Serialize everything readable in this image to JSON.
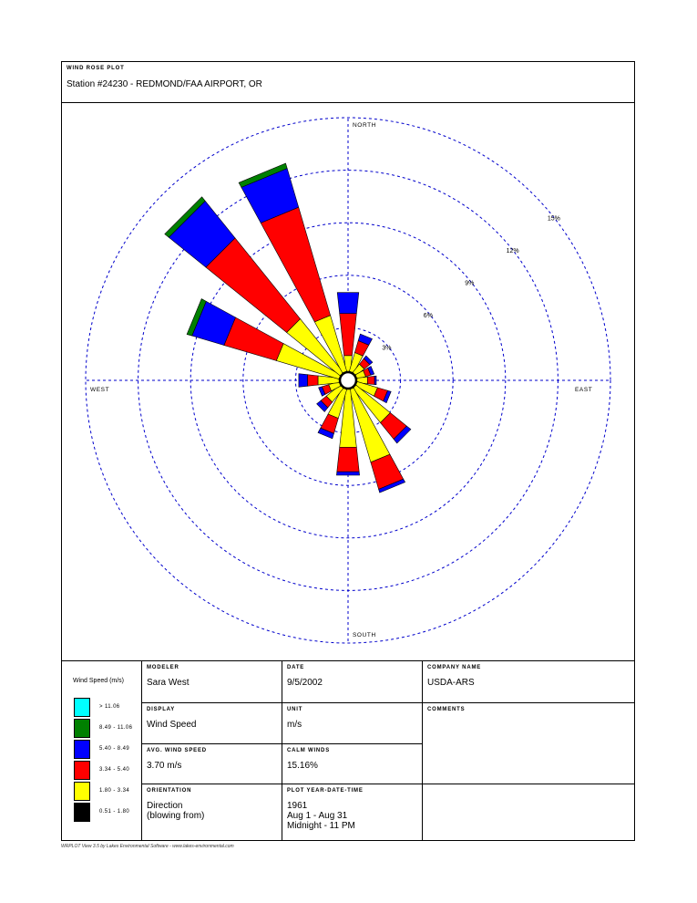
{
  "header": {
    "plot_label": "WIND ROSE PLOT",
    "station": "Station #24230 - REDMOND/FAA AIRPORT, OR"
  },
  "chart_data": {
    "type": "polar-stacked-bar",
    "rings": [
      3,
      6,
      9,
      12,
      15
    ],
    "ring_labels": [
      "3%",
      "6%",
      "9%",
      "12%",
      "15%"
    ],
    "directions": {
      "north": "NORTH",
      "south": "SOUTH",
      "east": "EAST",
      "west": "WEST"
    },
    "bins": [
      {
        "label": "> 11.06",
        "color": "#00ffff"
      },
      {
        "label": "8.49 - 11.06",
        "color": "#008000"
      },
      {
        "label": "5.40 - 8.49",
        "color": "#0000ff"
      },
      {
        "label": "3.34 - 5.40",
        "color": "#ff0000"
      },
      {
        "label": "1.80 - 3.34",
        "color": "#ffff00"
      },
      {
        "label": "0.51 - 1.80",
        "color": "#000000"
      }
    ],
    "series_order": [
      "0.51 - 1.80",
      "1.80 - 3.34",
      "3.34 - 5.40",
      "5.40 - 8.49",
      "8.49 - 11.06",
      "> 11.06"
    ],
    "sectors": [
      {
        "dir": 0,
        "values": [
          0.1,
          0.9,
          2.4,
          1.2,
          0,
          0
        ]
      },
      {
        "dir": 22.5,
        "values": [
          0.1,
          1.1,
          0.7,
          0.4,
          0,
          0
        ]
      },
      {
        "dir": 45,
        "values": [
          0.1,
          0.6,
          0.4,
          0.2,
          0,
          0
        ]
      },
      {
        "dir": 67.5,
        "values": [
          0.1,
          0.5,
          0.3,
          0.2,
          0,
          0
        ]
      },
      {
        "dir": 90,
        "values": [
          0.1,
          0.6,
          0.4,
          0.1,
          0,
          0
        ]
      },
      {
        "dir": 112.5,
        "values": [
          0.1,
          1.2,
          0.6,
          0.2,
          0,
          0
        ]
      },
      {
        "dir": 135,
        "values": [
          0.1,
          2.5,
          1.2,
          0.3,
          0,
          0
        ]
      },
      {
        "dir": 157.5,
        "values": [
          0.1,
          4.3,
          1.6,
          0.2,
          0,
          0
        ]
      },
      {
        "dir": 180,
        "values": [
          0.1,
          3.3,
          1.4,
          0.2,
          0,
          0
        ]
      },
      {
        "dir": 202.5,
        "values": [
          0.1,
          1.7,
          0.9,
          0.3,
          0,
          0
        ]
      },
      {
        "dir": 225,
        "values": [
          0.1,
          1.0,
          0.4,
          0.3,
          0,
          0
        ]
      },
      {
        "dir": 247.5,
        "values": [
          0.1,
          0.6,
          0.4,
          0.2,
          0,
          0
        ]
      },
      {
        "dir": 270,
        "values": [
          0.1,
          1.2,
          0.6,
          0.5,
          0,
          0
        ]
      },
      {
        "dir": 292.5,
        "values": [
          0.1,
          3.7,
          3.1,
          1.9,
          0.3,
          0
        ]
      },
      {
        "dir": 315,
        "values": [
          0.1,
          3.9,
          5.9,
          2.7,
          0.3,
          0
        ]
      },
      {
        "dir": 337.5,
        "values": [
          0.1,
          3.3,
          6.4,
          2.3,
          0.3,
          0
        ]
      }
    ]
  },
  "info": {
    "legend_title": "Wind Speed (m/s)",
    "modeler_label": "MODELER",
    "modeler": "Sara West",
    "date_label": "DATE",
    "date": "9/5/2002",
    "company_label": "COMPANY NAME",
    "company": "USDA-ARS",
    "display_label": "DISPLAY",
    "display": "Wind Speed",
    "unit_label": "UNIT",
    "unit": "m/s",
    "comments_label": "COMMENTS",
    "avg_label": "AVG. WIND SPEED",
    "avg": "3.70 m/s",
    "calm_label": "CALM WINDS",
    "calm": "15.16%",
    "orientation_label": "ORIENTATION",
    "orientation_1": "Direction",
    "orientation_2": "(blowing from)",
    "plotyear_label": "PLOT YEAR-DATE-TIME",
    "plotyear_1": "1961",
    "plotyear_2": "Aug 1 - Aug 31",
    "plotyear_3": "Midnight  -  11 PM"
  },
  "footer": "WRPLOT View 3.5 by Lakes Environmental Software - www.lakes-environmental.com"
}
